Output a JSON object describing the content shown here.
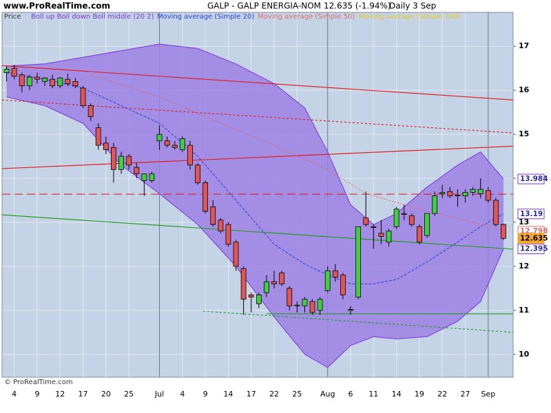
{
  "chart_data": {
    "type": "candlestick",
    "site": "www.ProRealTime.com",
    "title": "GALP - GALP ENERGIA-NOM",
    "quote": "12.635 (-1.94%)",
    "period": "Daily  3 Sep",
    "copyright": "© ProRealTime.com",
    "legend": [
      {
        "name": "Price",
        "color": "#333333"
      },
      {
        "name": "Boll up Boll down Boll middle (20 2)",
        "color": "#7a35d6"
      },
      {
        "name": "Moving average (Simple 20)",
        "color": "#2a3fd8"
      },
      {
        "name": "Moving average (Simple 50)",
        "color": "#e06a6a"
      },
      {
        "name": "Moving average (Simple 200)",
        "color": "#e8c81a"
      }
    ],
    "categories": [
      null,
      "4",
      null,
      null,
      "9",
      null,
      null,
      "12",
      null,
      null,
      "17",
      null,
      null,
      "20",
      null,
      null,
      "25",
      null,
      null,
      null,
      "Jul",
      null,
      null,
      "4",
      null,
      null,
      "9",
      null,
      null,
      "14",
      null,
      null,
      "17",
      null,
      null,
      "22",
      null,
      null,
      "25",
      null,
      null,
      null,
      "Aug",
      null,
      null,
      "6",
      null,
      null,
      "11",
      null,
      null,
      "14",
      null,
      null,
      "19",
      null,
      null,
      "22",
      null,
      null,
      "27",
      null,
      null,
      "Sep",
      null,
      null
    ],
    "open": [
      16.4,
      16.5,
      16.35,
      16.1,
      16.3,
      16.2,
      16.25,
      16.1,
      16.25,
      16.2,
      16.05,
      15.65,
      15.15,
      14.8,
      14.7,
      14.2,
      14.5,
      14.25,
      13.95,
      13.95,
      14.85,
      14.85,
      14.75,
      14.65,
      14.75,
      14.3,
      13.9,
      13.35,
      13.05,
      12.95,
      12.55,
      11.95,
      11.35,
      11.15,
      11.4,
      11.65,
      11.85,
      11.5,
      11.1,
      11.1,
      11.2,
      11.0,
      11.45,
      11.9,
      11.8,
      11.0,
      11.3,
      13.1,
      12.9,
      12.75,
      12.55,
      12.9,
      13.2,
      13.15,
      12.9,
      12.7,
      13.2,
      13.65,
      13.7,
      13.62,
      13.6,
      13.68,
      13.65,
      13.72,
      13.5,
      12.95
    ],
    "high": [
      16.55,
      16.58,
      16.4,
      16.35,
      16.4,
      16.3,
      16.35,
      16.3,
      16.38,
      16.28,
      16.1,
      15.7,
      15.25,
      14.95,
      14.8,
      14.6,
      14.55,
      14.35,
      14.1,
      14.15,
      15.2,
      14.95,
      14.85,
      14.95,
      14.85,
      14.35,
      13.95,
      13.5,
      13.1,
      13.0,
      12.6,
      12.0,
      11.4,
      11.4,
      11.8,
      11.9,
      11.9,
      11.55,
      11.2,
      11.3,
      11.25,
      11.3,
      12.0,
      12.05,
      11.85,
      11.1,
      12.9,
      13.7,
      12.95,
      13.05,
      12.85,
      13.35,
      13.4,
      13.2,
      12.95,
      13.2,
      13.7,
      13.85,
      13.8,
      13.75,
      13.75,
      13.8,
      14.0,
      13.8,
      13.55,
      12.97
    ],
    "low": [
      16.2,
      16.25,
      15.95,
      16.0,
      16.15,
      16.1,
      16.05,
      16.05,
      16.1,
      16.05,
      15.6,
      15.3,
      14.65,
      14.55,
      13.9,
      14.1,
      14.2,
      14.0,
      13.6,
      13.9,
      14.65,
      14.7,
      14.65,
      14.6,
      14.2,
      13.85,
      13.2,
      12.9,
      12.75,
      12.45,
      11.9,
      10.9,
      10.95,
      11.05,
      11.3,
      11.5,
      11.55,
      11.0,
      10.95,
      10.95,
      10.9,
      10.9,
      11.4,
      11.65,
      11.25,
      10.9,
      11.25,
      12.9,
      12.4,
      12.5,
      12.45,
      12.85,
      13.05,
      12.9,
      12.5,
      12.65,
      13.15,
      13.55,
      13.55,
      13.35,
      13.45,
      13.6,
      13.55,
      13.45,
      12.9,
      12.6
    ],
    "close": [
      16.48,
      16.32,
      16.1,
      16.3,
      16.25,
      16.28,
      16.1,
      16.28,
      16.15,
      16.1,
      15.65,
      15.4,
      14.75,
      14.65,
      14.2,
      14.5,
      14.3,
      14.1,
      14.1,
      14.1,
      15.0,
      14.75,
      14.7,
      14.9,
      14.3,
      13.9,
      13.25,
      12.95,
      12.8,
      12.5,
      12.0,
      11.25,
      11.3,
      11.35,
      11.65,
      11.6,
      11.6,
      11.1,
      11.12,
      11.25,
      10.95,
      11.25,
      11.9,
      11.75,
      11.35,
      11.02,
      12.9,
      12.95,
      12.88,
      12.68,
      12.8,
      13.3,
      13.18,
      12.95,
      12.55,
      13.2,
      13.6,
      13.68,
      13.6,
      13.6,
      13.68,
      13.75,
      13.75,
      13.5,
      12.95,
      12.635
    ],
    "up_color": "#3fcf3f",
    "down_color": "#e05555",
    "last_label_color": "#f7a52a",
    "band": {
      "color": "#9c80e4",
      "line_color": "#7a35d6",
      "x": [
        0,
        5,
        10,
        15,
        20,
        25,
        30,
        35,
        39,
        42,
        45,
        48,
        51,
        55,
        59,
        62,
        65
      ],
      "upper": [
        16.55,
        16.6,
        16.75,
        16.9,
        17.05,
        16.95,
        16.6,
        16.15,
        15.6,
        14.6,
        13.4,
        12.95,
        13.2,
        13.8,
        14.3,
        14.6,
        13.984
      ],
      "lower": [
        15.85,
        15.65,
        15.25,
        14.3,
        13.65,
        12.95,
        12.0,
        10.85,
        10.0,
        9.7,
        10.2,
        10.4,
        10.35,
        10.4,
        10.75,
        11.2,
        12.395
      ]
    },
    "lines": [
      {
        "color": "#2a3fd8",
        "dash": "4 2",
        "x": [
          0,
          5,
          10,
          15,
          20,
          25,
          30,
          35,
          39,
          42,
          45,
          48,
          51,
          55,
          59,
          62,
          65
        ],
        "values": [
          16.4,
          16.25,
          16.05,
          15.65,
          15.25,
          14.5,
          13.5,
          12.5,
          12.05,
          11.8,
          11.6,
          11.6,
          11.7,
          12.1,
          12.55,
          12.9,
          13.19
        ]
      },
      {
        "color": "#e06a6a",
        "dash": "2 2",
        "x": [
          11,
          20,
          26,
          35,
          42,
          47,
          53,
          60,
          65
        ],
        "values": [
          16.35,
          15.85,
          15.4,
          14.75,
          14.2,
          13.65,
          13.35,
          13.05,
          12.798
        ]
      }
    ],
    "trendlines": [
      {
        "color": "#e02020",
        "dash": "",
        "x": [
          -0.59,
          66.26
        ],
        "values": [
          16.56,
          15.78
        ]
      },
      {
        "color": "#e02020",
        "dash": "3 3",
        "x": [
          -0.59,
          66.26
        ],
        "values": [
          15.78,
          15.03
        ]
      },
      {
        "color": "#e02020",
        "dash": "",
        "x": [
          -0.59,
          66.26
        ],
        "values": [
          14.22,
          14.73
        ]
      },
      {
        "color": "#e02020",
        "dash": "12 6",
        "x": [
          -0.59,
          66.26
        ],
        "values": [
          13.64,
          13.64
        ]
      },
      {
        "color": "#20a020",
        "dash": "",
        "x": [
          -0.59,
          66.26
        ],
        "values": [
          13.17,
          12.39
        ]
      },
      {
        "color": "#20a020",
        "dash": "",
        "x": [
          34,
          66.26
        ],
        "values": [
          10.92,
          10.92
        ]
      },
      {
        "color": "#20a020",
        "dash": "3 3",
        "x": [
          25.7,
          66.26
        ],
        "values": [
          10.98,
          10.5
        ]
      }
    ],
    "xlim": [
      -0.59,
      66.26
    ],
    "ylim": [
      9.48,
      17.77
    ],
    "yticks": [
      10,
      11,
      12,
      13,
      14,
      15,
      16,
      17
    ],
    "grid": true
  }
}
